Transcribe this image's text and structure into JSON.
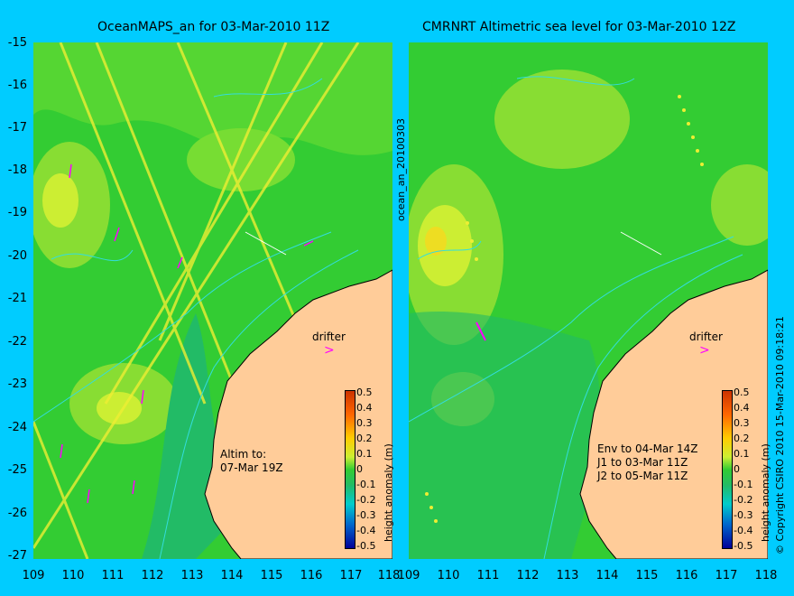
{
  "left_panel": {
    "title": "OceanMAPS_an for 03-Mar-2010 11Z",
    "annotation_lines": [
      "Altim to:",
      "07-Mar 19Z"
    ],
    "drifter_label": "drifter",
    "side_label": "ocean_an_20100303"
  },
  "right_panel": {
    "title": "CMRNRT Altimetric sea level  for 03-Mar-2010 12Z",
    "annotation_lines": [
      "Env to 04-Mar 14Z",
      "J1 to 03-Mar 11Z",
      "J2 to 05-Mar 11Z"
    ],
    "drifter_label": "drifter",
    "side_label": "© Copyright CSIRO 2010   15-Mar-2010 09:18:21"
  },
  "y_ticks": [
    "-15",
    "-16",
    "-17",
    "-18",
    "-19",
    "-20",
    "-21",
    "-22",
    "-23",
    "-24",
    "-25",
    "-26",
    "-27"
  ],
  "x_ticks": [
    "109",
    "110",
    "111",
    "112",
    "113",
    "114",
    "115",
    "116",
    "117",
    "118"
  ],
  "colorbar": {
    "label": "height anomaly (m)",
    "ticks": [
      "0.5",
      "0.4",
      "0.3",
      "0.2",
      "0.1",
      "0",
      "-0.1",
      "-0.2",
      "-0.3",
      "-0.4",
      "-0.5"
    ]
  },
  "colors": {
    "background": "#00ccff",
    "land": "#ffcc99",
    "sea_green": "#33cc33",
    "sea_light": "#66dd33",
    "sea_teal": "#22bb66",
    "high": "#ccee33",
    "drifter": "#ff00ff"
  }
}
